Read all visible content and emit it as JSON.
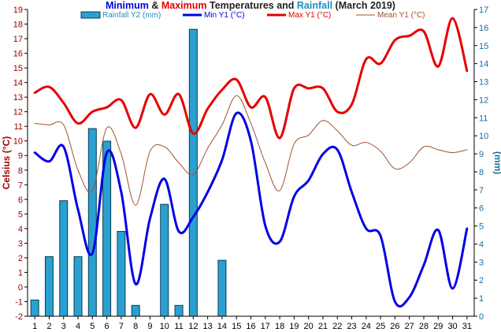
{
  "colors": {
    "min": "#0000e6",
    "max": "#e60000",
    "mean": "#a0522d",
    "rain": "#1f8fbf",
    "rain_bar_fill": "#2aa0d0",
    "left_axis": "#a00000",
    "right_axis": "#1c6f9c",
    "title_dark": "#222222"
  },
  "chart_data": {
    "type": "bar+line",
    "title_parts": [
      {
        "text": "Minimum",
        "role": "min"
      },
      {
        "text": " & ",
        "role": "dark"
      },
      {
        "text": "Maximum",
        "role": "max"
      },
      {
        "text": " Temperatures and ",
        "role": "dark"
      },
      {
        "text": "Rainfall",
        "role": "rain"
      },
      {
        "text": " (March 2019)",
        "role": "dark"
      }
    ],
    "ylabel_left": "Celsius (°C)",
    "ylabel_right": "(mm)",
    "x": [
      1,
      2,
      3,
      4,
      5,
      6,
      7,
      8,
      9,
      10,
      11,
      12,
      13,
      14,
      15,
      16,
      17,
      18,
      19,
      20,
      21,
      22,
      23,
      24,
      25,
      26,
      27,
      28,
      29,
      30,
      31
    ],
    "xlim": [
      0.5,
      31.5
    ],
    "ylim_left": [
      -2,
      19
    ],
    "ylim_right": [
      0,
      17
    ],
    "grid": false,
    "legend": [
      {
        "name": "Rainfall Y2 (mm)",
        "kind": "bar",
        "color_key": "rain"
      },
      {
        "name": "Min Y1 (°C)",
        "kind": "line",
        "color_key": "min"
      },
      {
        "name": "Max Y1 (°C)",
        "kind": "line",
        "color_key": "max"
      },
      {
        "name": "Mean Y1 (°C)",
        "kind": "line",
        "color_key": "mean"
      }
    ],
    "series": [
      {
        "name": "Rainfall Y2 (mm)",
        "axis": "right",
        "type": "bar",
        "values": [
          0.9,
          3.3,
          6.4,
          3.3,
          10.4,
          9.7,
          4.7,
          0.6,
          0,
          6.2,
          0.6,
          15.9,
          0,
          3.1,
          0,
          0,
          0,
          0,
          0,
          0,
          0,
          0,
          0,
          0,
          0,
          0,
          0,
          0,
          0,
          0,
          0
        ]
      },
      {
        "name": "Min Y1 (°C)",
        "axis": "left",
        "type": "line",
        "values": [
          9.2,
          8.6,
          9.6,
          5.3,
          2.3,
          9.2,
          6.5,
          0.2,
          4.7,
          7.4,
          3.8,
          4.8,
          6.5,
          8.7,
          11.9,
          10.0,
          4.2,
          3.1,
          6.2,
          7.3,
          9.1,
          9.4,
          6.5,
          4.0,
          3.5,
          -1.0,
          -0.7,
          1.5,
          3.9,
          -0.1,
          4.0
        ]
      },
      {
        "name": "Max Y1 (°C)",
        "axis": "left",
        "type": "line",
        "values": [
          13.3,
          13.7,
          12.6,
          11.2,
          12.0,
          12.3,
          12.8,
          10.9,
          13.2,
          11.8,
          13.2,
          10.5,
          12.2,
          13.5,
          14.2,
          12.3,
          13.0,
          10.2,
          13.6,
          13.6,
          13.6,
          12.0,
          12.5,
          15.6,
          15.3,
          16.9,
          17.2,
          17.5,
          15.1,
          18.4,
          14.8
        ]
      },
      {
        "name": "Mean Y1 (°C)",
        "axis": "left",
        "type": "line",
        "values": [
          11.2,
          11.1,
          11.1,
          8.0,
          6.6,
          10.9,
          9.1,
          5.6,
          9.3,
          9.6,
          8.5,
          7.7,
          9.5,
          11.1,
          13.1,
          11.2,
          8.5,
          6.6,
          9.8,
          10.4,
          11.4,
          10.7,
          9.7,
          9.9,
          9.3,
          8.1,
          8.5,
          9.6,
          9.4,
          9.2,
          9.4
        ]
      }
    ]
  }
}
